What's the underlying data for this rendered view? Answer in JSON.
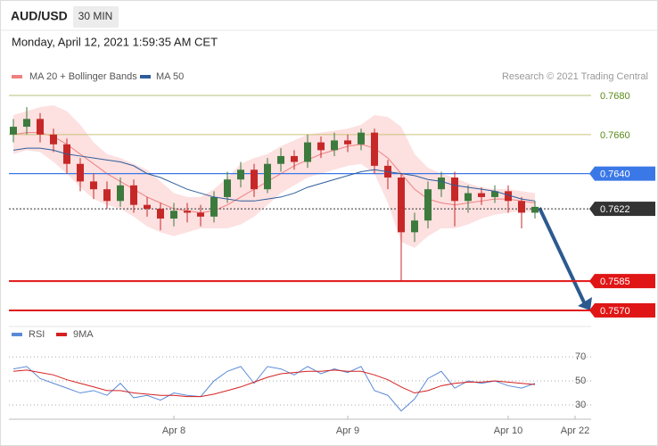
{
  "chart_data": {
    "type": "candlestick",
    "title": "AUD/USD",
    "timeframe": "30 MIN",
    "subtitle": "Monday, April 12, 2021 1:59:35 AM CET",
    "credit": "Research © 2021 Trading Central",
    "categories": [
      null,
      null,
      null,
      null,
      null,
      null,
      null,
      null,
      null,
      null,
      null,
      null,
      "Apr 8",
      null,
      null,
      null,
      null,
      null,
      null,
      null,
      null,
      null,
      null,
      null,
      null,
      "Apr 9",
      null,
      null,
      null,
      null,
      null,
      null,
      null,
      null,
      null,
      null,
      null,
      "Apr 10",
      null,
      null,
      null,
      null,
      "Apr 22",
      null
    ],
    "open": [
      0.766,
      0.7664,
      0.7668,
      0.766,
      0.7655,
      0.7645,
      0.7636,
      0.7632,
      0.7626,
      0.7634,
      0.7624,
      0.7622,
      0.7617,
      0.7621,
      0.762,
      0.7618,
      0.7628,
      0.7637,
      0.7642,
      0.7632,
      0.7645,
      0.7649,
      0.7646,
      0.7656,
      0.7652,
      0.7657,
      0.7655,
      0.7661,
      0.7644,
      0.7638,
      0.761,
      0.7616,
      0.7632,
      0.7638,
      0.7626,
      0.763,
      0.7628,
      0.7631,
      0.7626,
      0.762,
      null,
      null,
      null,
      null
    ],
    "high": [
      0.7668,
      0.7674,
      0.7671,
      0.7663,
      0.7658,
      0.7648,
      0.764,
      0.7636,
      0.7638,
      0.7637,
      0.7628,
      0.7625,
      0.7625,
      0.7625,
      0.7624,
      0.7631,
      0.7641,
      0.7646,
      0.7645,
      0.7648,
      0.7653,
      0.7652,
      0.766,
      0.7659,
      0.7661,
      0.766,
      0.7663,
      0.7663,
      0.7647,
      0.764,
      0.762,
      0.7636,
      0.7641,
      0.7641,
      0.7634,
      0.7633,
      0.7634,
      0.7634,
      0.7628,
      0.7626,
      null,
      null,
      null,
      null
    ],
    "low": [
      0.7656,
      0.766,
      0.7656,
      0.7651,
      0.764,
      0.7631,
      0.7627,
      0.7622,
      0.7623,
      0.762,
      0.7618,
      0.7611,
      0.7613,
      0.7615,
      0.7613,
      0.7615,
      0.7625,
      0.7633,
      0.7628,
      0.763,
      0.7641,
      0.7642,
      0.7643,
      0.7648,
      0.7649,
      0.7651,
      0.7652,
      0.764,
      0.7632,
      0.7585,
      0.7605,
      0.7612,
      0.7628,
      0.7613,
      0.762,
      0.7624,
      0.7625,
      0.762,
      0.7612,
      0.7617,
      null,
      null,
      null,
      null
    ],
    "close": [
      0.7664,
      0.7668,
      0.766,
      0.7655,
      0.7645,
      0.7636,
      0.7632,
      0.7626,
      0.7634,
      0.7624,
      0.7622,
      0.7617,
      0.7621,
      0.762,
      0.7618,
      0.7628,
      0.7637,
      0.7642,
      0.7632,
      0.7645,
      0.7649,
      0.7646,
      0.7656,
      0.7652,
      0.7657,
      0.7655,
      0.7661,
      0.7644,
      0.7638,
      0.761,
      0.7616,
      0.7632,
      0.7638,
      0.7626,
      0.763,
      0.7628,
      0.7631,
      0.7626,
      0.762,
      0.7623,
      null,
      null,
      null,
      null
    ],
    "up_color": "#3d7a3d",
    "down_color": "#c62828",
    "bands": {
      "name": "MA 20 + Bollinger Bands",
      "color": "#f08080",
      "fill": "#fde0e0",
      "upper": [
        0.767,
        0.7672,
        0.7674,
        0.7675,
        0.7672,
        0.7665,
        0.7656,
        0.765,
        0.7648,
        0.7645,
        0.7642,
        0.7636,
        0.763,
        0.7628,
        0.7628,
        0.7632,
        0.7638,
        0.7645,
        0.7648,
        0.765,
        0.7654,
        0.7657,
        0.766,
        0.7661,
        0.7662,
        0.7663,
        0.7665,
        0.767,
        0.7669,
        0.7664,
        0.765,
        0.7643,
        0.764,
        0.7638,
        0.7635,
        0.7633,
        0.7632,
        0.7632,
        0.7631,
        0.763,
        null,
        null,
        null,
        null
      ],
      "lower": [
        0.765,
        0.7652,
        0.7651,
        0.7646,
        0.764,
        0.7633,
        0.7627,
        0.7624,
        0.7622,
        0.7618,
        0.7613,
        0.761,
        0.7608,
        0.761,
        0.7612,
        0.7612,
        0.7612,
        0.7614,
        0.7618,
        0.7624,
        0.763,
        0.7634,
        0.7638,
        0.764,
        0.7642,
        0.7644,
        0.7645,
        0.764,
        0.7625,
        0.7605,
        0.7602,
        0.7608,
        0.7612,
        0.7612,
        0.7614,
        0.7617,
        0.7619,
        0.762,
        0.7621,
        0.762,
        null,
        null,
        null,
        null
      ],
      "values": [
        0.766,
        0.7661,
        0.7661,
        0.7659,
        0.7655,
        0.765,
        0.7645,
        0.764,
        0.7636,
        0.7632,
        0.7628,
        0.7625,
        0.7622,
        0.7621,
        0.762,
        0.7621,
        0.7624,
        0.7628,
        0.7632,
        0.7636,
        0.764,
        0.7644,
        0.7647,
        0.765,
        0.7652,
        0.7654,
        0.7655,
        0.7653,
        0.7648,
        0.764,
        0.7632,
        0.7627,
        0.7625,
        0.7624,
        0.7625,
        0.7626,
        0.7627,
        0.7627,
        0.7626,
        0.7625,
        null,
        null,
        null,
        null
      ]
    },
    "series": [
      {
        "name": "MA 50",
        "color": "#2f5d9a",
        "values": [
          0.7652,
          0.7653,
          0.7653,
          0.7652,
          0.765,
          0.7649,
          0.7648,
          0.7647,
          0.7646,
          0.7644,
          0.764,
          0.7638,
          0.7635,
          0.7632,
          0.763,
          0.7628,
          0.7627,
          0.7626,
          0.7626,
          0.7627,
          0.7628,
          0.763,
          0.7633,
          0.7635,
          0.7637,
          0.7639,
          0.7641,
          0.7642,
          0.7641,
          0.764,
          0.7639,
          0.7637,
          0.7636,
          0.7634,
          0.7633,
          0.7632,
          0.7631,
          0.7629,
          0.7627,
          0.7626,
          null,
          null,
          null,
          null
        ]
      }
    ],
    "ylim": [
      0.75645,
      0.76855
    ],
    "levels": [
      {
        "value": 0.768,
        "label": "0.7680",
        "color": "#b5c27a",
        "text_color": "#5a8a1a",
        "box": false,
        "dotted": false
      },
      {
        "value": 0.766,
        "label": "0.7660",
        "color": "#c9c27a",
        "text_color": "#5a8a1a",
        "box": false,
        "dotted": false
      },
      {
        "value": 0.764,
        "label": "0.7640",
        "color": "#3b78e7",
        "text_color": "#ffffff",
        "box": true,
        "dotted": false
      },
      {
        "value": 0.7622,
        "label": "0.7622",
        "color": "#333333",
        "text_color": "#ffffff",
        "box": true,
        "dotted": true
      },
      {
        "value": 0.7585,
        "label": "0.7585",
        "color": "#e01515",
        "text_color": "#ffffff",
        "box": true,
        "dotted": false
      },
      {
        "value": 0.757,
        "label": "0.7570",
        "color": "#e01515",
        "text_color": "#ffffff",
        "box": true,
        "dotted": false
      }
    ],
    "rsi": {
      "ylim": [
        20,
        76
      ],
      "yticks": [
        70,
        50,
        30
      ],
      "grid": true,
      "series": [
        {
          "name": "RSI",
          "color": "#5b8bd6",
          "values": [
            60,
            62,
            52,
            48,
            44,
            40,
            42,
            38,
            48,
            36,
            38,
            34,
            40,
            38,
            37,
            50,
            58,
            62,
            48,
            62,
            60,
            55,
            62,
            56,
            60,
            57,
            62,
            42,
            38,
            25,
            35,
            52,
            58,
            44,
            50,
            48,
            50,
            46,
            44,
            48,
            null,
            null,
            null,
            null
          ]
        },
        {
          "name": "9MA",
          "color": "#d62020",
          "values": [
            58,
            59,
            57,
            55,
            51,
            48,
            45,
            42,
            42,
            40,
            39,
            38,
            38,
            37,
            37,
            39,
            42,
            45,
            49,
            53,
            56,
            57,
            58,
            58,
            59,
            58,
            58,
            55,
            51,
            45,
            40,
            42,
            46,
            48,
            49,
            49,
            50,
            49,
            48,
            47,
            null,
            null,
            null,
            null
          ]
        }
      ]
    }
  }
}
